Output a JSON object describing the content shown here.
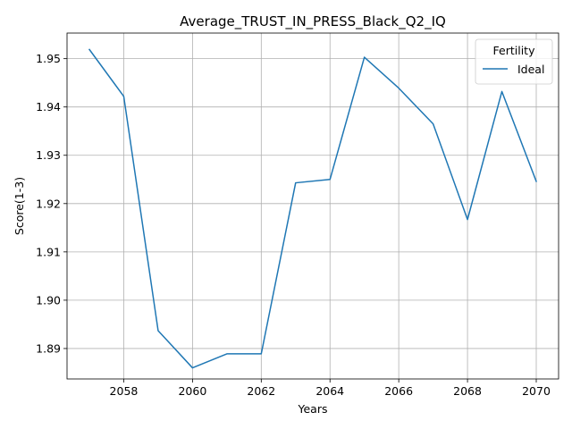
{
  "chart_data": {
    "type": "line",
    "title": "Average_TRUST_IN_PRESS_Black_Q2_IQ",
    "xlabel": "Years",
    "ylabel": "Score(1-3)",
    "xlim": [
      2056.35,
      2070.65
    ],
    "ylim": [
      1.8837,
      1.9553
    ],
    "xticks": [
      2058,
      2060,
      2062,
      2064,
      2066,
      2068,
      2070
    ],
    "yticks": [
      1.89,
      1.9,
      1.91,
      1.92,
      1.93,
      1.94,
      1.95
    ],
    "grid": true,
    "legend": {
      "title": "Fertility",
      "placement": "top-right"
    },
    "series": [
      {
        "name": "Ideal",
        "color": "#1f77b4",
        "x": [
          2057,
          2058,
          2059,
          2060,
          2061,
          2062,
          2063,
          2064,
          2065,
          2066,
          2067,
          2068,
          2069,
          2070
        ],
        "y": [
          1.9519,
          1.9422,
          1.8937,
          1.886,
          1.8889,
          1.8889,
          1.9243,
          1.925,
          1.9503,
          1.9439,
          1.9365,
          1.9167,
          1.9432,
          1.9246
        ]
      }
    ]
  }
}
